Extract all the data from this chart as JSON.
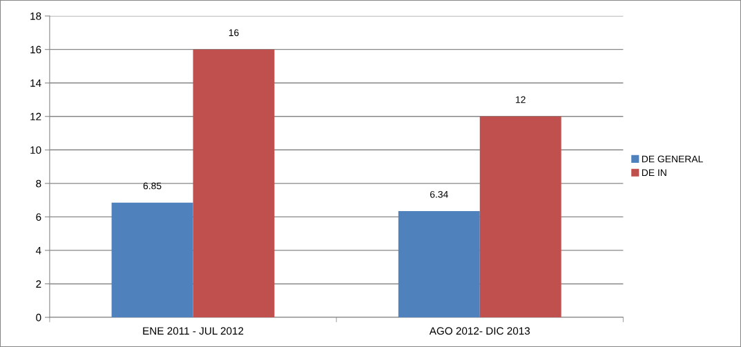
{
  "chart_data": {
    "type": "bar",
    "categories": [
      "ENE 2011 - JUL 2012",
      "AGO 2012- DIC 2013"
    ],
    "series": [
      {
        "name": "DE GENERAL",
        "color": "#4f81bd",
        "values": [
          6.85,
          6.34
        ]
      },
      {
        "name": "DE IN",
        "color": "#c0504d",
        "values": [
          16,
          12
        ]
      }
    ],
    "ylim": [
      0,
      18
    ],
    "yticks": [
      0,
      2,
      4,
      6,
      8,
      10,
      12,
      14,
      16,
      18
    ],
    "grid": "y",
    "legend": "right",
    "data_labels": true
  }
}
